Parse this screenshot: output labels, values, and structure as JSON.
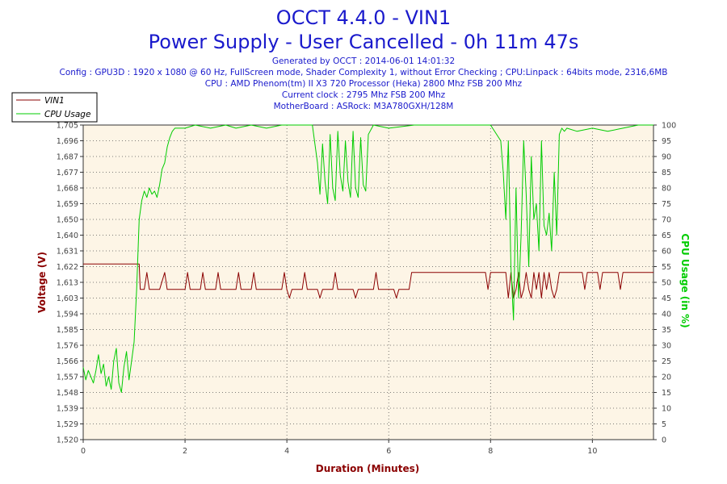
{
  "title": "OCCT 4.4.0 - VIN1",
  "subtitle": "Power Supply - User Cancelled - 0h 11m 47s",
  "info_lines": [
    "Generated by OCCT : 2014-06-01 14:01:32",
    "Config : GPU3D : 1920 x 1080 @ 60 Hz, FullScreen mode, Shader Complexity 1, without Error Checking ; CPU:Linpack : 64bits mode, 2316,6MB",
    "CPU : AMD Phenom(tm) II X3 720 Processor (Heka) 2800 Mhz FSB 200 Mhz",
    "Current clock : 2795 Mhz FSB 200 Mhz",
    "MotherBoard : ASRock: M3A780GXH/128M"
  ],
  "colors": {
    "plot_bg": "#fdf5e6",
    "voltage": "#8b0000",
    "cpu": "#00cc00",
    "title": "#1a1acc"
  },
  "chart_data": {
    "type": "line",
    "xlabel": "Duration (Minutes)",
    "ylabel": "Voltage (V)",
    "y2label": "CPU Usage (in %)",
    "xlim": [
      0,
      11.2
    ],
    "ylim": [
      1.52,
      1.7054
    ],
    "y2lim": [
      0,
      100
    ],
    "x_ticks": [
      "0",
      "2",
      "4",
      "6",
      "8",
      "10"
    ],
    "y_ticks": [
      "1,520",
      "1,529",
      "1,539",
      "1,548",
      "1,557",
      "1,566",
      "1,576",
      "1,585",
      "1,594",
      "1,603",
      "1,613",
      "1,622",
      "1,631",
      "1,640",
      "1,650",
      "1,659",
      "1,668",
      "1,677",
      "1,687",
      "1,696",
      "1,705"
    ],
    "y2_ticks": [
      "0",
      "5",
      "10",
      "15",
      "20",
      "25",
      "30",
      "35",
      "40",
      "45",
      "50",
      "55",
      "60",
      "65",
      "70",
      "75",
      "80",
      "85",
      "90",
      "95",
      "100"
    ],
    "grid": true,
    "legend": "top-left",
    "series": [
      {
        "name": "VIN1",
        "axis": "left",
        "x": [
          0,
          1.1,
          1.12,
          1.2,
          1.25,
          1.3,
          1.4,
          1.5,
          1.6,
          1.65,
          1.7,
          2.0,
          2.05,
          2.1,
          2.2,
          2.3,
          2.35,
          2.4,
          2.6,
          2.65,
          2.7,
          3.0,
          3.05,
          3.1,
          3.3,
          3.35,
          3.4,
          3.9,
          3.95,
          4.0,
          4.05,
          4.1,
          4.3,
          4.35,
          4.4,
          4.6,
          4.65,
          4.7,
          4.9,
          4.95,
          5.0,
          5.3,
          5.35,
          5.4,
          5.7,
          5.75,
          5.8,
          6.1,
          6.15,
          6.2,
          6.4,
          6.45,
          6.5,
          7.0,
          7.5,
          7.9,
          7.95,
          8.0,
          8.3,
          8.35,
          8.4,
          8.45,
          8.5,
          8.55,
          8.6,
          8.65,
          8.7,
          8.75,
          8.8,
          8.85,
          8.9,
          8.95,
          9.0,
          9.05,
          9.1,
          9.15,
          9.2,
          9.25,
          9.3,
          9.35,
          9.4,
          9.5,
          9.6,
          9.7,
          9.8,
          9.85,
          9.9,
          10.0,
          10.1,
          10.15,
          10.2,
          10.5,
          10.55,
          10.6,
          10.7,
          10.8,
          10.9,
          11.0,
          11.2
        ],
        "y": [
          1.6235,
          1.6235,
          1.6085,
          1.6085,
          1.6185,
          1.6085,
          1.6085,
          1.6085,
          1.6185,
          1.6085,
          1.6085,
          1.6085,
          1.6185,
          1.6085,
          1.6085,
          1.6085,
          1.6185,
          1.6085,
          1.6085,
          1.6185,
          1.6085,
          1.6085,
          1.6185,
          1.6085,
          1.6085,
          1.6185,
          1.6085,
          1.6085,
          1.6185,
          1.6085,
          1.6035,
          1.6085,
          1.6085,
          1.6185,
          1.6085,
          1.6085,
          1.6035,
          1.6085,
          1.6085,
          1.6185,
          1.6085,
          1.6085,
          1.6035,
          1.6085,
          1.6085,
          1.6185,
          1.6085,
          1.6085,
          1.6035,
          1.6085,
          1.6085,
          1.6185,
          1.6185,
          1.6185,
          1.6185,
          1.6185,
          1.6085,
          1.6185,
          1.6185,
          1.6035,
          1.6185,
          1.6035,
          1.6085,
          1.6185,
          1.6035,
          1.6085,
          1.6185,
          1.6085,
          1.6035,
          1.6185,
          1.6085,
          1.6185,
          1.6035,
          1.6185,
          1.6085,
          1.6185,
          1.6085,
          1.6035,
          1.6085,
          1.6185,
          1.6185,
          1.6185,
          1.6185,
          1.6185,
          1.6185,
          1.6085,
          1.6185,
          1.6185,
          1.6185,
          1.6085,
          1.6185,
          1.6185,
          1.6085,
          1.6185,
          1.6185,
          1.6185,
          1.6185,
          1.6185,
          1.6185
        ]
      },
      {
        "name": "CPU Usage",
        "axis": "right",
        "x": [
          0,
          0.05,
          0.1,
          0.15,
          0.2,
          0.25,
          0.3,
          0.35,
          0.4,
          0.45,
          0.5,
          0.55,
          0.6,
          0.65,
          0.7,
          0.75,
          0.8,
          0.85,
          0.9,
          0.95,
          1.0,
          1.05,
          1.1,
          1.15,
          1.2,
          1.25,
          1.3,
          1.35,
          1.4,
          1.45,
          1.5,
          1.55,
          1.6,
          1.65,
          1.7,
          1.75,
          1.8,
          2.0,
          2.2,
          2.5,
          2.8,
          3.0,
          3.3,
          3.6,
          3.9,
          4.2,
          4.5,
          4.6,
          4.65,
          4.7,
          4.75,
          4.8,
          4.85,
          4.9,
          4.95,
          5.0,
          5.05,
          5.1,
          5.15,
          5.2,
          5.25,
          5.3,
          5.35,
          5.4,
          5.45,
          5.5,
          5.55,
          5.6,
          5.7,
          6.0,
          6.5,
          7.0,
          7.5,
          8.0,
          8.2,
          8.25,
          8.3,
          8.35,
          8.4,
          8.45,
          8.5,
          8.55,
          8.6,
          8.65,
          8.7,
          8.75,
          8.8,
          8.85,
          8.9,
          8.95,
          9.0,
          9.05,
          9.1,
          9.15,
          9.2,
          9.25,
          9.3,
          9.35,
          9.4,
          9.45,
          9.5,
          9.7,
          10.0,
          10.3,
          10.6,
          10.9,
          11.2
        ],
        "y": [
          23,
          19,
          22,
          20,
          18,
          22,
          27,
          21,
          24,
          17,
          20,
          16,
          25,
          29,
          18,
          15,
          23,
          28,
          19,
          25,
          31,
          48,
          70,
          76,
          79,
          77,
          80,
          78,
          79,
          77,
          81,
          86,
          88,
          93,
          96,
          98,
          99,
          99,
          100,
          99,
          100,
          99,
          100,
          99,
          100,
          100,
          100,
          88,
          78,
          94,
          82,
          75,
          97,
          80,
          76,
          98,
          84,
          79,
          95,
          82,
          77,
          98,
          80,
          77,
          96,
          81,
          79,
          97,
          100,
          99,
          100,
          100,
          100,
          100,
          95,
          85,
          70,
          95,
          55,
          38,
          80,
          45,
          65,
          95,
          78,
          55,
          90,
          70,
          75,
          60,
          95,
          68,
          65,
          72,
          60,
          85,
          65,
          97,
          99,
          98,
          99,
          98,
          99,
          98,
          99,
          100,
          100
        ]
      }
    ]
  }
}
